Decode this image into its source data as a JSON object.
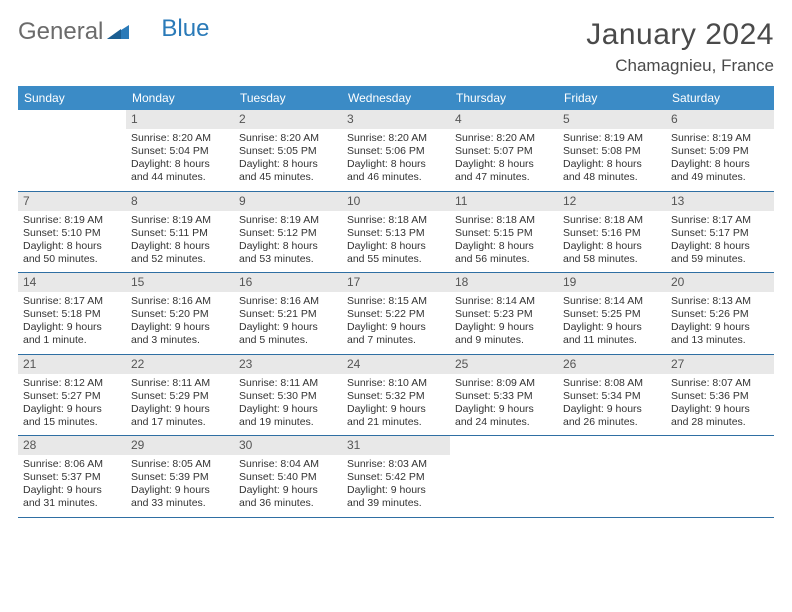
{
  "logo": {
    "part1": "General",
    "part2": "Blue"
  },
  "title": "January 2024",
  "location": "Chamagnieu, France",
  "colors": {
    "header_bg": "#3b8bc6",
    "header_text": "#ffffff",
    "daynum_bg": "#e8e8e8",
    "week_border": "#2f6fa3",
    "logo_gray": "#6b6b6b",
    "logo_blue": "#2a7ab8"
  },
  "daysOfWeek": [
    "Sunday",
    "Monday",
    "Tuesday",
    "Wednesday",
    "Thursday",
    "Friday",
    "Saturday"
  ],
  "weeks": [
    [
      {
        "n": "",
        "sr": "",
        "ss": "",
        "d1": "",
        "d2": ""
      },
      {
        "n": "1",
        "sr": "Sunrise: 8:20 AM",
        "ss": "Sunset: 5:04 PM",
        "d1": "Daylight: 8 hours",
        "d2": "and 44 minutes."
      },
      {
        "n": "2",
        "sr": "Sunrise: 8:20 AM",
        "ss": "Sunset: 5:05 PM",
        "d1": "Daylight: 8 hours",
        "d2": "and 45 minutes."
      },
      {
        "n": "3",
        "sr": "Sunrise: 8:20 AM",
        "ss": "Sunset: 5:06 PM",
        "d1": "Daylight: 8 hours",
        "d2": "and 46 minutes."
      },
      {
        "n": "4",
        "sr": "Sunrise: 8:20 AM",
        "ss": "Sunset: 5:07 PM",
        "d1": "Daylight: 8 hours",
        "d2": "and 47 minutes."
      },
      {
        "n": "5",
        "sr": "Sunrise: 8:19 AM",
        "ss": "Sunset: 5:08 PM",
        "d1": "Daylight: 8 hours",
        "d2": "and 48 minutes."
      },
      {
        "n": "6",
        "sr": "Sunrise: 8:19 AM",
        "ss": "Sunset: 5:09 PM",
        "d1": "Daylight: 8 hours",
        "d2": "and 49 minutes."
      }
    ],
    [
      {
        "n": "7",
        "sr": "Sunrise: 8:19 AM",
        "ss": "Sunset: 5:10 PM",
        "d1": "Daylight: 8 hours",
        "d2": "and 50 minutes."
      },
      {
        "n": "8",
        "sr": "Sunrise: 8:19 AM",
        "ss": "Sunset: 5:11 PM",
        "d1": "Daylight: 8 hours",
        "d2": "and 52 minutes."
      },
      {
        "n": "9",
        "sr": "Sunrise: 8:19 AM",
        "ss": "Sunset: 5:12 PM",
        "d1": "Daylight: 8 hours",
        "d2": "and 53 minutes."
      },
      {
        "n": "10",
        "sr": "Sunrise: 8:18 AM",
        "ss": "Sunset: 5:13 PM",
        "d1": "Daylight: 8 hours",
        "d2": "and 55 minutes."
      },
      {
        "n": "11",
        "sr": "Sunrise: 8:18 AM",
        "ss": "Sunset: 5:15 PM",
        "d1": "Daylight: 8 hours",
        "d2": "and 56 minutes."
      },
      {
        "n": "12",
        "sr": "Sunrise: 8:18 AM",
        "ss": "Sunset: 5:16 PM",
        "d1": "Daylight: 8 hours",
        "d2": "and 58 minutes."
      },
      {
        "n": "13",
        "sr": "Sunrise: 8:17 AM",
        "ss": "Sunset: 5:17 PM",
        "d1": "Daylight: 8 hours",
        "d2": "and 59 minutes."
      }
    ],
    [
      {
        "n": "14",
        "sr": "Sunrise: 8:17 AM",
        "ss": "Sunset: 5:18 PM",
        "d1": "Daylight: 9 hours",
        "d2": "and 1 minute."
      },
      {
        "n": "15",
        "sr": "Sunrise: 8:16 AM",
        "ss": "Sunset: 5:20 PM",
        "d1": "Daylight: 9 hours",
        "d2": "and 3 minutes."
      },
      {
        "n": "16",
        "sr": "Sunrise: 8:16 AM",
        "ss": "Sunset: 5:21 PM",
        "d1": "Daylight: 9 hours",
        "d2": "and 5 minutes."
      },
      {
        "n": "17",
        "sr": "Sunrise: 8:15 AM",
        "ss": "Sunset: 5:22 PM",
        "d1": "Daylight: 9 hours",
        "d2": "and 7 minutes."
      },
      {
        "n": "18",
        "sr": "Sunrise: 8:14 AM",
        "ss": "Sunset: 5:23 PM",
        "d1": "Daylight: 9 hours",
        "d2": "and 9 minutes."
      },
      {
        "n": "19",
        "sr": "Sunrise: 8:14 AM",
        "ss": "Sunset: 5:25 PM",
        "d1": "Daylight: 9 hours",
        "d2": "and 11 minutes."
      },
      {
        "n": "20",
        "sr": "Sunrise: 8:13 AM",
        "ss": "Sunset: 5:26 PM",
        "d1": "Daylight: 9 hours",
        "d2": "and 13 minutes."
      }
    ],
    [
      {
        "n": "21",
        "sr": "Sunrise: 8:12 AM",
        "ss": "Sunset: 5:27 PM",
        "d1": "Daylight: 9 hours",
        "d2": "and 15 minutes."
      },
      {
        "n": "22",
        "sr": "Sunrise: 8:11 AM",
        "ss": "Sunset: 5:29 PM",
        "d1": "Daylight: 9 hours",
        "d2": "and 17 minutes."
      },
      {
        "n": "23",
        "sr": "Sunrise: 8:11 AM",
        "ss": "Sunset: 5:30 PM",
        "d1": "Daylight: 9 hours",
        "d2": "and 19 minutes."
      },
      {
        "n": "24",
        "sr": "Sunrise: 8:10 AM",
        "ss": "Sunset: 5:32 PM",
        "d1": "Daylight: 9 hours",
        "d2": "and 21 minutes."
      },
      {
        "n": "25",
        "sr": "Sunrise: 8:09 AM",
        "ss": "Sunset: 5:33 PM",
        "d1": "Daylight: 9 hours",
        "d2": "and 24 minutes."
      },
      {
        "n": "26",
        "sr": "Sunrise: 8:08 AM",
        "ss": "Sunset: 5:34 PM",
        "d1": "Daylight: 9 hours",
        "d2": "and 26 minutes."
      },
      {
        "n": "27",
        "sr": "Sunrise: 8:07 AM",
        "ss": "Sunset: 5:36 PM",
        "d1": "Daylight: 9 hours",
        "d2": "and 28 minutes."
      }
    ],
    [
      {
        "n": "28",
        "sr": "Sunrise: 8:06 AM",
        "ss": "Sunset: 5:37 PM",
        "d1": "Daylight: 9 hours",
        "d2": "and 31 minutes."
      },
      {
        "n": "29",
        "sr": "Sunrise: 8:05 AM",
        "ss": "Sunset: 5:39 PM",
        "d1": "Daylight: 9 hours",
        "d2": "and 33 minutes."
      },
      {
        "n": "30",
        "sr": "Sunrise: 8:04 AM",
        "ss": "Sunset: 5:40 PM",
        "d1": "Daylight: 9 hours",
        "d2": "and 36 minutes."
      },
      {
        "n": "31",
        "sr": "Sunrise: 8:03 AM",
        "ss": "Sunset: 5:42 PM",
        "d1": "Daylight: 9 hours",
        "d2": "and 39 minutes."
      },
      {
        "n": "",
        "sr": "",
        "ss": "",
        "d1": "",
        "d2": ""
      },
      {
        "n": "",
        "sr": "",
        "ss": "",
        "d1": "",
        "d2": ""
      },
      {
        "n": "",
        "sr": "",
        "ss": "",
        "d1": "",
        "d2": ""
      }
    ]
  ]
}
